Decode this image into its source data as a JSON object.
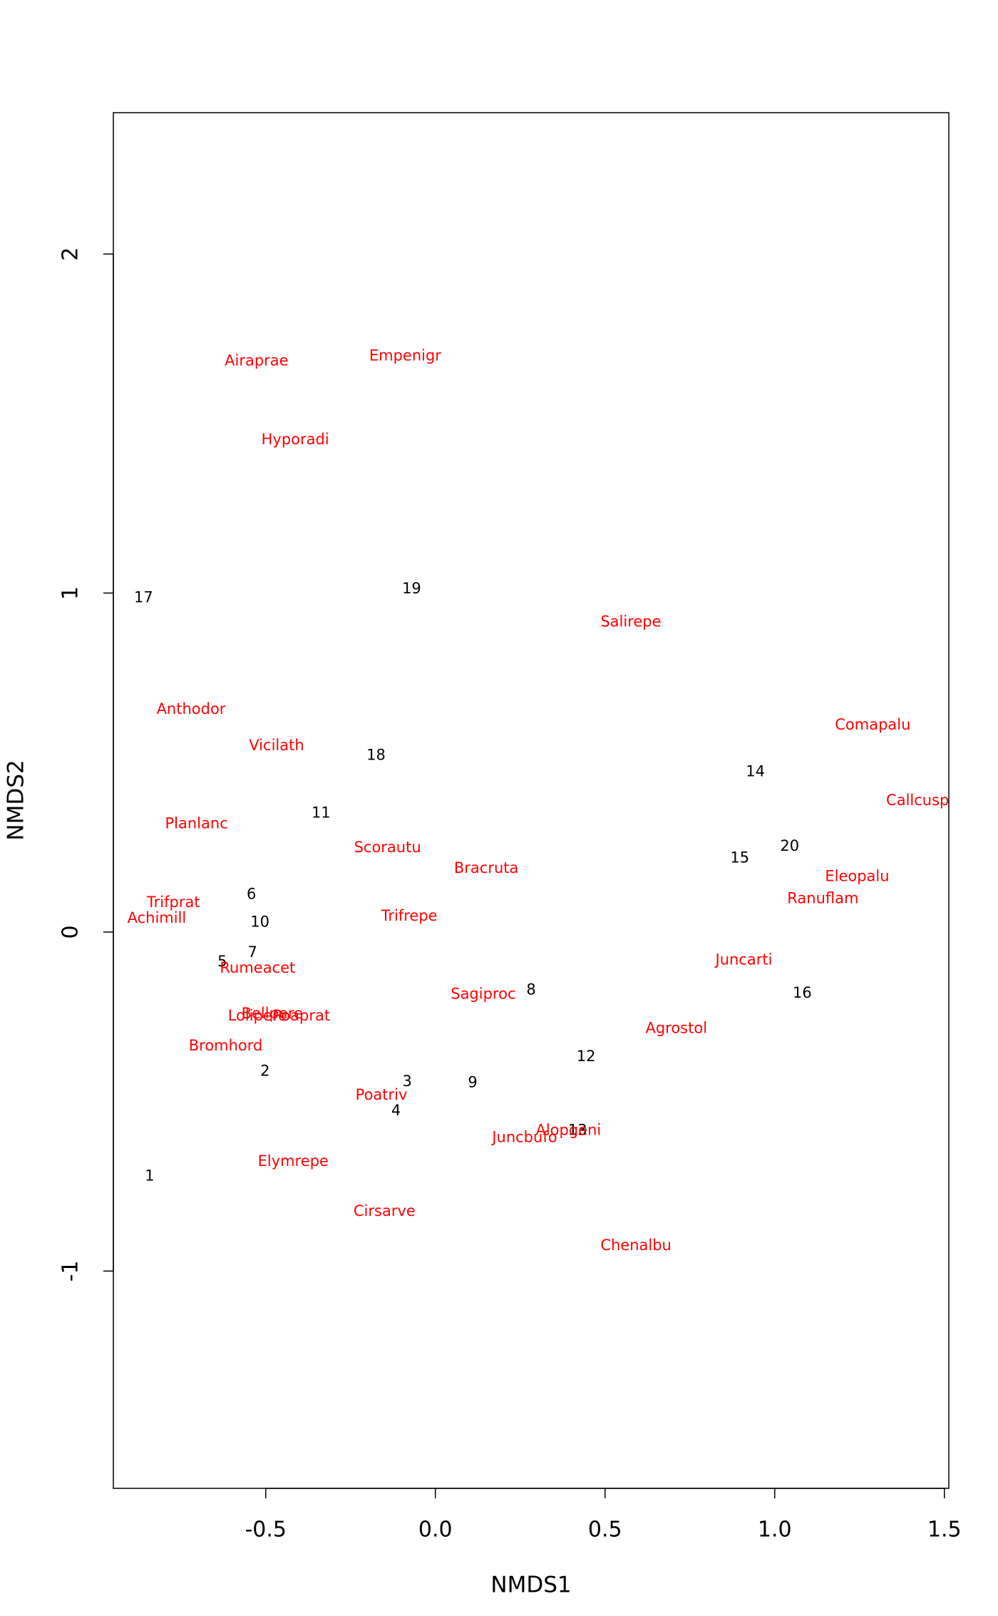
{
  "chart_data": {
    "type": "scatter",
    "xlabel": "NMDS1",
    "ylabel": "NMDS2",
    "xlim": [
      -0.949,
      1.513
    ],
    "ylim": [
      -1.641,
      2.417
    ],
    "xticks": [
      -0.5,
      {
        "value": 0,
        "label": "0.0"
      },
      0.5,
      {
        "value": 1,
        "label": "1.0"
      },
      1.5
    ],
    "yticks": [
      -1,
      0,
      1,
      2
    ],
    "series": [
      {
        "color": "#000000",
        "labels": [
          "1",
          "2",
          "3",
          "4",
          "5",
          "6",
          "7",
          "8",
          "9",
          "10",
          "11",
          "12",
          "13",
          "14",
          "15",
          "16",
          "17",
          "18",
          "19",
          "20"
        ],
        "x": [
          -0.842,
          -0.502,
          -0.083,
          -0.116,
          -0.628,
          -0.542,
          -0.539,
          0.282,
          0.11,
          -0.517,
          -0.337,
          0.444,
          0.419,
          0.943,
          0.897,
          1.081,
          -0.86,
          -0.175,
          -0.07,
          1.044
        ],
        "values": [
          -0.721,
          -0.411,
          -0.442,
          -0.528,
          -0.089,
          0.11,
          -0.061,
          -0.172,
          -0.445,
          0.028,
          0.35,
          -0.368,
          -0.586,
          0.472,
          0.218,
          -0.181,
          0.985,
          0.521,
          1.012,
          0.252
        ]
      },
      {
        "color": "#ff0000",
        "labels": [
          "Achimill",
          "Agrostol",
          "Airaprae",
          "Alopgeni",
          "Anthodor",
          "Bellpere",
          "Bromhord",
          "Chenalbu",
          "Cirsarve",
          "Comapalu",
          "Eleopalu",
          "Elymrepe",
          "Empenigr",
          "Hyporadi",
          "Juncarti",
          "Juncbufo",
          "Lolipere",
          "Planlanc",
          "Poaprat",
          "Poatriv",
          "Ranuflam",
          "Rumeacet",
          "Sagiproc",
          "Salirepe",
          "Scorautu",
          "Trifprat",
          "Trifrepe",
          "Vicilath",
          "Bracruta",
          "Callcusp"
        ],
        "x": [
          -0.821,
          0.71,
          -0.527,
          0.392,
          -0.72,
          -0.481,
          -0.618,
          0.591,
          -0.15,
          1.289,
          1.243,
          -0.419,
          -0.089,
          -0.413,
          0.909,
          0.263,
          -0.524,
          -0.704,
          -0.395,
          -0.159,
          1.142,
          -0.524,
          0.141,
          0.576,
          -0.141,
          -0.772,
          -0.077,
          -0.468,
          0.15,
          1.421
        ],
        "values": [
          0.04,
          -0.285,
          1.684,
          -0.586,
          0.656,
          -0.242,
          -0.337,
          -0.926,
          -0.825,
          0.61,
          0.163,
          -0.678,
          1.699,
          1.451,
          -0.083,
          -0.607,
          -0.248,
          0.319,
          -0.248,
          -0.482,
          0.098,
          -0.107,
          -0.184,
          0.914,
          0.248,
          0.086,
          0.046,
          0.549,
          0.187,
          0.387
        ]
      }
    ]
  }
}
